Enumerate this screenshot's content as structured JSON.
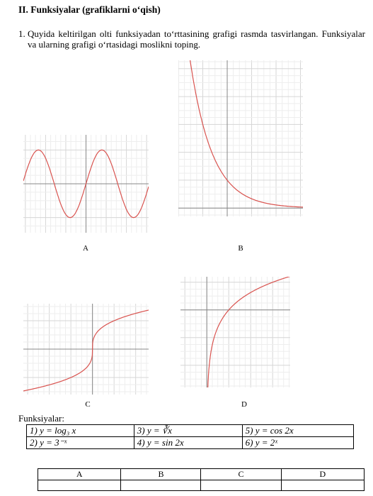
{
  "header": {
    "title": "II. Funksiyalar (grafiklarni o‘qish)"
  },
  "problem": {
    "number": "1.",
    "text": "Quyida keltirilgan olti funksiyadan to‘rttasining grafigi rasmda tasvirlangan. Funksiyalar va ularning grafigi o‘rtasidagi moslikni toping."
  },
  "graphs": [
    {
      "label": "A"
    },
    {
      "label": "B"
    },
    {
      "label": "C"
    },
    {
      "label": "D"
    }
  ],
  "functions_label": "Funksiyalar:",
  "functions": [
    "1) y = log₃ x",
    "2) y = 3⁻ˣ",
    "3) y = ∛x",
    "4) y = sin 2x",
    "5) y = cos 2x",
    "6) y = 2ˣ"
  ],
  "answer_table": {
    "headers": [
      "A",
      "B",
      "C",
      "D"
    ]
  }
}
